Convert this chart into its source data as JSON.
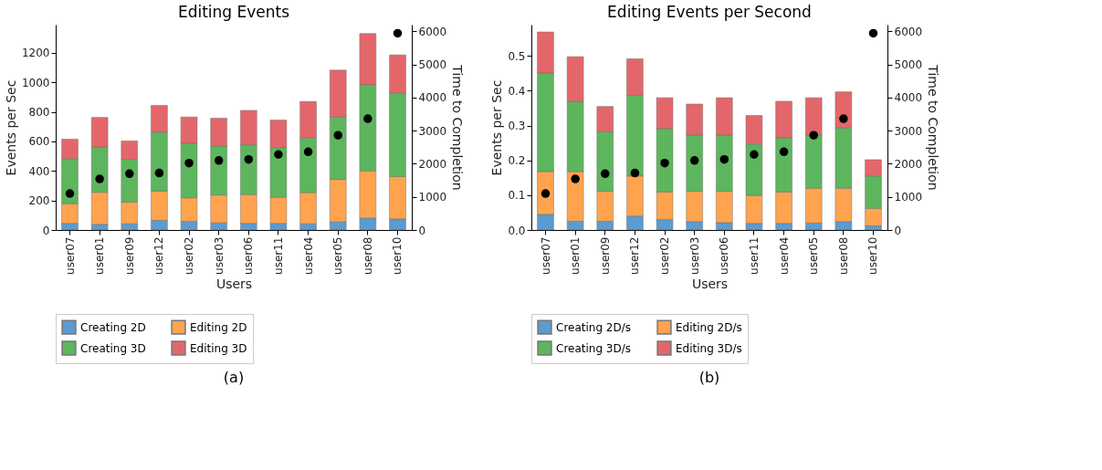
{
  "chart_data": [
    {
      "type": "bar",
      "title": "Editing Events",
      "xlabel": "Users",
      "ylabel": "Events per Sec",
      "y2label": "Time to Completion",
      "categories": [
        "user07",
        "user01",
        "user09",
        "user12",
        "user02",
        "user03",
        "user06",
        "user11",
        "user04",
        "user05",
        "user08",
        "user10"
      ],
      "stacked": true,
      "legend": "bottom",
      "grid": false,
      "ylim": [
        0,
        1390
      ],
      "yticks": [
        0,
        200,
        400,
        600,
        800,
        1000,
        1200
      ],
      "marker": "circle",
      "y2lim": [
        0,
        6200
      ],
      "y2ticks": [
        0,
        1000,
        2000,
        3000,
        4000,
        5000,
        6000
      ],
      "series": [
        {
          "name": "Creating 2D",
          "color": "#4b91cc",
          "values": [
            45,
            38,
            42,
            65,
            58,
            48,
            45,
            45,
            42,
            55,
            80,
            75
          ]
        },
        {
          "name": "Editing 2D",
          "color": "#ff9a3c",
          "values": [
            133,
            217,
            146,
            198,
            160,
            189,
            195,
            177,
            211,
            287,
            320,
            287
          ]
        },
        {
          "name": "Creating 3D",
          "color": "#4caf4c",
          "values": [
            305,
            307,
            290,
            399,
            369,
            331,
            337,
            336,
            370,
            423,
            583,
            566
          ]
        },
        {
          "name": "Editing 3D",
          "color": "#e0575a",
          "values": [
            132,
            200,
            125,
            181,
            178,
            189,
            233,
            187,
            247,
            317,
            347,
            257
          ]
        },
        {
          "type": "scatter",
          "axis": "y2",
          "color": "#000000",
          "values": [
            1100,
            1540,
            1700,
            1720,
            2020,
            2100,
            2130,
            2280,
            2360,
            2860,
            3360,
            5940
          ]
        }
      ],
      "annotations": [
        "(a)"
      ]
    },
    {
      "type": "bar",
      "title": "Editing Events per Second",
      "xlabel": "Users",
      "ylabel": "Events per Sec",
      "y2label": "Time to Completion",
      "categories": [
        "user07",
        "user01",
        "user09",
        "user12",
        "user02",
        "user03",
        "user06",
        "user11",
        "user04",
        "user05",
        "user08",
        "user10"
      ],
      "stacked": true,
      "legend": "bottom",
      "grid": false,
      "marker": "circle",
      "ylim": [
        0,
        0.59
      ],
      "yticks": [
        {
          "value": 0,
          "label": "0.0"
        },
        0.1,
        0.2,
        0.3,
        0.4,
        0.5
      ],
      "y2lim": [
        0,
        6200
      ],
      "y2ticks": [
        0,
        1000,
        2000,
        3000,
        4000,
        5000,
        6000
      ],
      "series": [
        {
          "name": "Creating 2D/s",
          "color": "#4b91cc",
          "values": [
            0.045,
            0.025,
            0.025,
            0.04,
            0.03,
            0.024,
            0.021,
            0.019,
            0.019,
            0.02,
            0.024,
            0.012
          ]
        },
        {
          "name": "Editing 2D/s",
          "color": "#ff9a3c",
          "values": [
            0.123,
            0.143,
            0.086,
            0.115,
            0.079,
            0.087,
            0.09,
            0.08,
            0.09,
            0.1,
            0.096,
            0.05
          ]
        },
        {
          "name": "Creating 3D/s",
          "color": "#4caf4c",
          "values": [
            0.283,
            0.202,
            0.171,
            0.232,
            0.182,
            0.162,
            0.162,
            0.148,
            0.156,
            0.153,
            0.173,
            0.093
          ]
        },
        {
          "name": "Editing 3D/s",
          "color": "#e0575a",
          "values": [
            0.118,
            0.128,
            0.073,
            0.105,
            0.089,
            0.089,
            0.107,
            0.082,
            0.105,
            0.107,
            0.104,
            0.047
          ]
        },
        {
          "type": "scatter",
          "axis": "y2",
          "color": "#000000",
          "values": [
            1100,
            1540,
            1700,
            1720,
            2020,
            2100,
            2130,
            2280,
            2360,
            2860,
            3360,
            5940
          ]
        }
      ],
      "annotations": [
        "(b)"
      ]
    }
  ]
}
